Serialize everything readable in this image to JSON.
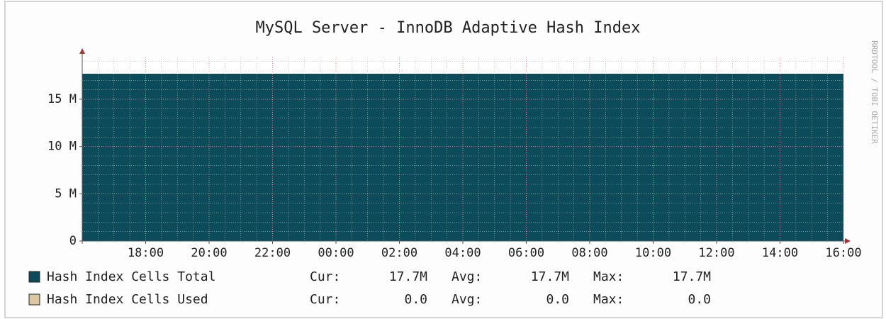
{
  "chart_data": {
    "type": "area",
    "title": "MySQL Server - InnoDB Adaptive Hash Index",
    "watermark": "RRDTOOL / TOBI OETIKER",
    "x": [
      16,
      40
    ],
    "xlim": [
      16,
      40
    ],
    "xticks": [
      {
        "value": 18,
        "label": "18:00"
      },
      {
        "value": 20,
        "label": "20:00"
      },
      {
        "value": 22,
        "label": "22:00"
      },
      {
        "value": 24,
        "label": "00:00"
      },
      {
        "value": 26,
        "label": "02:00"
      },
      {
        "value": 28,
        "label": "04:00"
      },
      {
        "value": 30,
        "label": "06:00"
      },
      {
        "value": 32,
        "label": "08:00"
      },
      {
        "value": 34,
        "label": "10:00"
      },
      {
        "value": 36,
        "label": "12:00"
      },
      {
        "value": 38,
        "label": "14:00"
      },
      {
        "value": 40,
        "label": "16:00"
      }
    ],
    "ylim": [
      0,
      19500000
    ],
    "yticks": [
      0,
      {
        "value": 5000000,
        "label": "5 M"
      },
      {
        "value": 10000000,
        "label": "10 M"
      },
      {
        "value": 15000000,
        "label": "15 M"
      }
    ],
    "grid": true,
    "series": [
      {
        "name": "Hash Index Cells Total",
        "color": "#0c4b5a",
        "values": [
          17700000,
          17700000
        ],
        "stats": [
          {
            "label": "Cur:",
            "value": "17.7M"
          },
          {
            "label": "Avg:",
            "value": "17.7M"
          },
          {
            "label": "Max:",
            "value": "17.7M"
          }
        ]
      },
      {
        "name": "Hash Index Cells Used",
        "color": "#dcc8a0",
        "values": [
          0,
          0
        ],
        "stats": [
          {
            "label": "Cur:",
            "value": "0.0"
          },
          {
            "label": "Avg:",
            "value": "0.0"
          },
          {
            "label": "Max:",
            "value": "0.0"
          }
        ]
      }
    ]
  }
}
